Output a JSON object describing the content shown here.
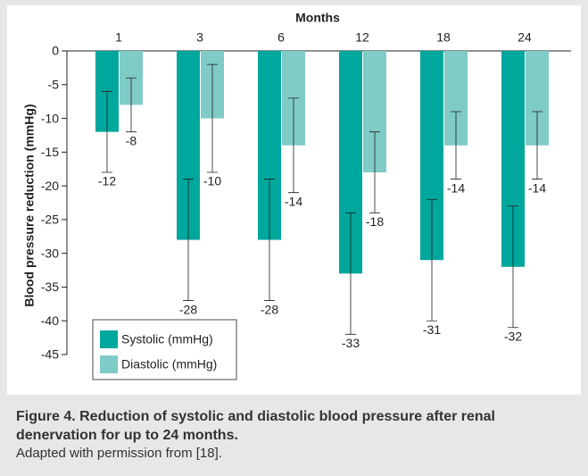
{
  "chart_data": {
    "type": "bar",
    "xaxis_position": "top",
    "x_label": "Months",
    "y_label": "Blood pressure reduction (mmHg)",
    "categories": [
      "1",
      "3",
      "6",
      "12",
      "18",
      "24"
    ],
    "series": [
      {
        "name": "Systolic (mmHg)",
        "color": "#00a79d",
        "values": [
          -12,
          -28,
          -28,
          -33,
          -31,
          -32
        ],
        "errors": [
          6,
          9,
          9,
          9,
          9,
          9
        ]
      },
      {
        "name": "Diastolic (mmHg)",
        "color": "#7fcbc6",
        "values": [
          -8,
          -10,
          -14,
          -18,
          -14,
          -14
        ],
        "errors": [
          4,
          8,
          7,
          6,
          5,
          5
        ]
      }
    ],
    "ylim": [
      -45,
      0
    ],
    "yticks": [
      0,
      -5,
      -10,
      -15,
      -20,
      -25,
      -30,
      -35,
      -40,
      -45
    ],
    "grid": false,
    "legend": "lower left"
  },
  "caption_title": "Figure 4. Reduction of systolic and diastolic blood pressure after renal denervation for up to 24 months.",
  "caption_note": "Adapted with permission from [18]."
}
